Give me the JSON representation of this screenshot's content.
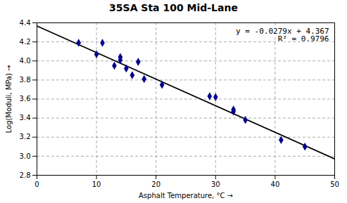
{
  "chart_data": {
    "type": "scatter",
    "title": "35SA Sta 100 Mid-Lane",
    "xlabel": "Asphalt Temperature, °C",
    "ylabel": "Log(Moduli, MPa)",
    "x": [
      7,
      10,
      11,
      13,
      14,
      14,
      15,
      16,
      17,
      18,
      21,
      29,
      30,
      33,
      33,
      35,
      41,
      45
    ],
    "values": [
      4.19,
      4.07,
      4.19,
      3.95,
      4.04,
      4.01,
      3.92,
      3.85,
      3.99,
      3.81,
      3.75,
      3.63,
      3.62,
      3.49,
      3.47,
      3.38,
      3.17,
      3.1
    ],
    "color": "#00008B",
    "marker": "diamond",
    "line": {
      "x": [
        0,
        50
      ],
      "values": [
        4.367,
        2.972
      ],
      "color": "#000000"
    },
    "annotations": [
      "y = -0.0279x + 4.367",
      "R² = 0.9796"
    ],
    "xlim": [
      0,
      50
    ],
    "ylim": [
      2.8,
      4.4
    ],
    "xticks": [
      0,
      10,
      20,
      30,
      40,
      50
    ],
    "yticks": [
      2.8,
      {
        "value": 3.0,
        "label": "3.0"
      },
      3.2,
      3.4,
      3.6,
      3.8,
      {
        "value": 4.0,
        "label": "4.0"
      },
      4.2,
      4.4
    ],
    "grid": true
  }
}
